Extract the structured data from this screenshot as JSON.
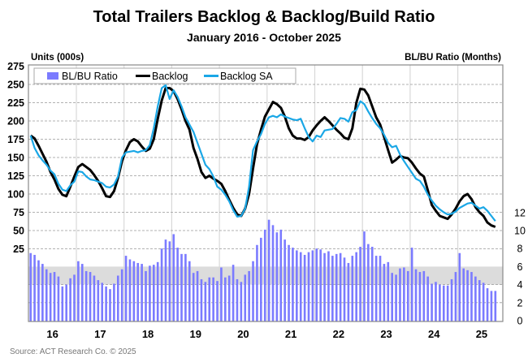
{
  "chart_data": {
    "type": "bar+line",
    "title": "Total Trailers Backlog & Backlog/Build Ratio",
    "subtitle": "January 2016 - October 2025",
    "ylabel_left": "Units (000s)",
    "ylabel_right": "BL/BU Ratio (Months)",
    "source": "Source: ACT Research Co. © 2025",
    "start_month": "2016-01",
    "end_month": "2025-10",
    "x_tick_labels": [
      "16",
      "17",
      "18",
      "19",
      "20",
      "21",
      "22",
      "23",
      "24",
      "25"
    ],
    "y_left_ticks": [
      25,
      50,
      75,
      100,
      125,
      150,
      175,
      200,
      225,
      250,
      275
    ],
    "y_right_ticks": [
      0,
      2,
      4,
      6,
      8,
      10,
      12
    ],
    "y_left_range": [
      0,
      275
    ],
    "y_right_range": [
      0,
      24.8
    ],
    "shaded_band_months": [
      4,
      6
    ],
    "grid": true,
    "legend": "top-left",
    "colors": {
      "bars": "#7b7bff",
      "backlog": "#000000",
      "backlog_sa": "#1aa7e6",
      "band": "#dcdcdc"
    },
    "series": [
      {
        "name": "BL/BU Ratio",
        "axis": "right",
        "type": "bar",
        "values": [
          7.5,
          7.3,
          6.7,
          6.3,
          5.7,
          5.3,
          5.4,
          4.9,
          3.8,
          4.0,
          4.7,
          5.1,
          6.6,
          6.3,
          5.5,
          5.4,
          5.0,
          4.5,
          4.2,
          3.8,
          3.5,
          4.1,
          5.0,
          5.7,
          7.2,
          6.8,
          6.6,
          6.4,
          6.3,
          5.5,
          6.1,
          6.2,
          6.5,
          8.0,
          9.0,
          8.8,
          9.6,
          8.1,
          7.4,
          7.4,
          6.6,
          5.3,
          5.5,
          4.6,
          4.3,
          4.8,
          4.8,
          4.4,
          5.9,
          4.8,
          5.0,
          6.2,
          4.6,
          4.3,
          5.1,
          5.5,
          6.6,
          8.4,
          9.2,
          10.1,
          11.2,
          10.6,
          9.8,
          10.1,
          9.0,
          8.4,
          8.1,
          7.8,
          7.6,
          7.3,
          7.6,
          7.8,
          8.0,
          7.9,
          7.5,
          7.7,
          7.2,
          7.4,
          7.5,
          7.0,
          6.4,
          7.2,
          7.6,
          8.2,
          9.9,
          8.5,
          8.2,
          7.2,
          7.2,
          6.3,
          6.5,
          5.3,
          5.1,
          5.8,
          5.9,
          5.5,
          8.1,
          5.7,
          5.4,
          5.5,
          4.9,
          4.1,
          4.3,
          4.0,
          3.9,
          3.9,
          4.6,
          5.4,
          7.5,
          5.8,
          5.6,
          5.4,
          4.9,
          4.5,
          4.2,
          3.6,
          3.3,
          3.3
        ]
      },
      {
        "name": "Backlog",
        "axis": "left",
        "type": "line",
        "values": [
          180,
          176,
          166,
          155,
          144,
          130,
          120,
          107,
          99,
          97,
          110,
          124,
          137,
          141,
          137,
          133,
          126,
          118,
          108,
          97,
          96,
          104,
          122,
          145,
          160,
          171,
          175,
          172,
          165,
          159,
          162,
          175,
          203,
          228,
          245,
          245,
          241,
          230,
          216,
          200,
          188,
          163,
          148,
          130,
          122,
          125,
          121,
          118,
          114,
          104,
          92,
          81,
          72,
          70,
          80,
          100,
          135,
          168,
          188,
          206,
          216,
          226,
          223,
          218,
          206,
          190,
          180,
          176,
          176,
          174,
          178,
          187,
          194,
          200,
          205,
          200,
          194,
          188,
          183,
          177,
          175,
          190,
          225,
          244,
          243,
          235,
          220,
          205,
          195,
          178,
          160,
          143,
          147,
          152,
          150,
          149,
          143,
          135,
          128,
          124,
          105,
          85,
          77,
          70,
          68,
          66,
          72,
          80,
          90,
          97,
          100,
          93,
          82,
          75,
          70,
          61,
          57,
          55
        ]
      },
      {
        "name": "Backlog SA",
        "axis": "left",
        "type": "line",
        "values": [
          180,
          163,
          153,
          146,
          140,
          132,
          127,
          114,
          106,
          104,
          112,
          117,
          131,
          130,
          124,
          120,
          119,
          117,
          115,
          110,
          109,
          113,
          124,
          150,
          157,
          158,
          159,
          157,
          159,
          160,
          167,
          190,
          220,
          245,
          249,
          230,
          242,
          233,
          220,
          205,
          195,
          185,
          170,
          155,
          140,
          134,
          124,
          110,
          106,
          99,
          90,
          78,
          69,
          70,
          80,
          110,
          160,
          172,
          182,
          196,
          205,
          207,
          205,
          209,
          206,
          204,
          202,
          201,
          203,
          190,
          178,
          172,
          180,
          178,
          187,
          188,
          189,
          196,
          204,
          203,
          199,
          212,
          215,
          227,
          223,
          213,
          204,
          196,
          190,
          181,
          170,
          164,
          166,
          154,
          145,
          137,
          129,
          121,
          118,
          110,
          99,
          91,
          84,
          79,
          75,
          72,
          73,
          76,
          81,
          84,
          87,
          88,
          84,
          80,
          82,
          77,
          70,
          63
        ]
      }
    ]
  }
}
